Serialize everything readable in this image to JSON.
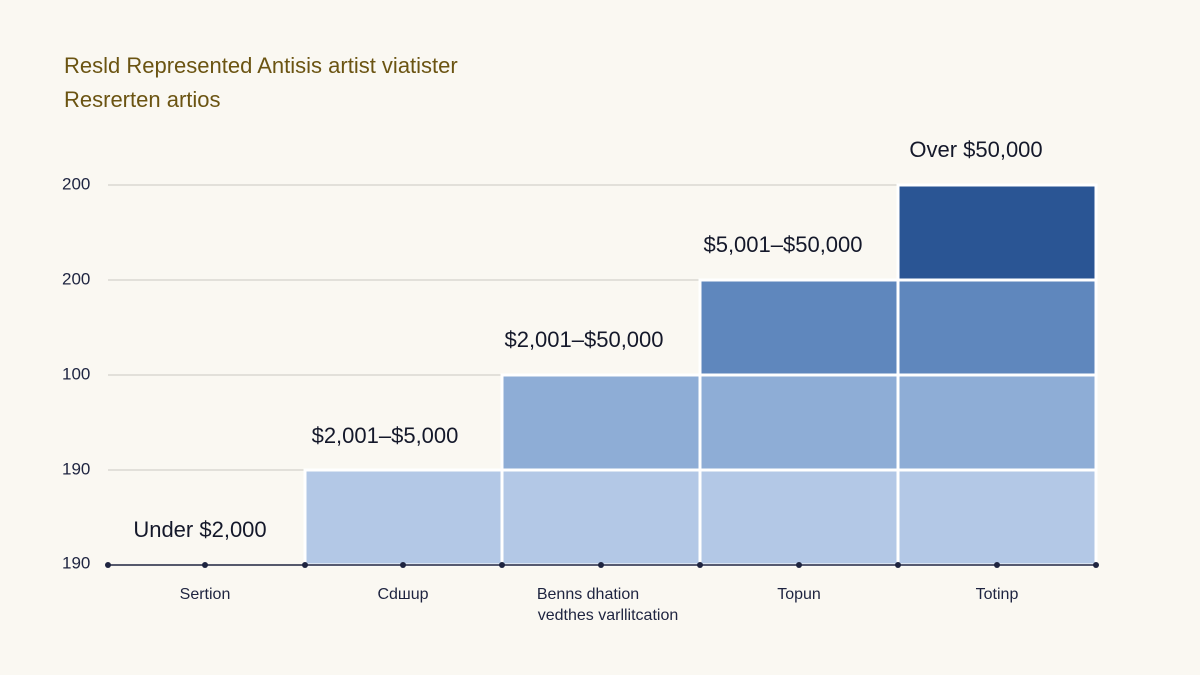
{
  "title": [
    "Resld Represented Antisis artist viatister",
    "Resrerten artios"
  ],
  "y_labels": [
    "200",
    "200",
    "100",
    "190",
    "190"
  ],
  "step_labels": [
    "Under $2,000",
    "$2,001–$5,000",
    "$2,001–$50,000",
    "$5,001–$50,000",
    "Over $50,000"
  ],
  "x_labels": [
    [
      "Sertion"
    ],
    [
      "Cdшup"
    ],
    [
      "Benns dhation",
      "vedthes varllitcation"
    ],
    [
      "Topun"
    ],
    [
      "Totinp"
    ]
  ]
}
